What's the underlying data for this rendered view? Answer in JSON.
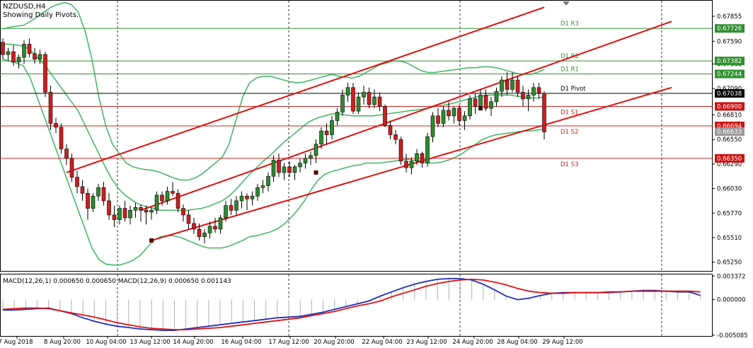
{
  "header": {
    "symbol": "NZDUSD,H4",
    "subtitle": "Showing Daily Pivots."
  },
  "colors": {
    "bull_candle": "#2e8b2e",
    "bear_candle": "#cc1f1f",
    "bollinger": "#4cb86a",
    "trendline": "#dd1111",
    "resistance": "#3c8c3c",
    "support": "#cc2222",
    "pivot": "#000000",
    "macd_line": "#1f2fb8",
    "signal_line": "#dd1111",
    "price_tag_green": "#2f8f2f",
    "price_tag_red": "#cc1111",
    "price_tag_black": "#000000",
    "price_tag_gray": "#9a9a9a"
  },
  "chart_data": [
    {
      "type": "candlestick",
      "title": "NZDUSD,H4",
      "subtitle": "Showing Daily Pivots.",
      "ylim": [
        0.6515,
        0.6802
      ],
      "y_ticks": [
        "0.67855",
        "0.67590",
        "0.67350",
        "0.67090",
        "0.66810",
        "0.66550",
        "0.66290",
        "0.66030",
        "0.65770",
        "0.65510",
        "0.65250"
      ],
      "x_ticks": [
        "7 Aug 2018",
        "8 Aug 20:00",
        "10 Aug 04:00",
        "13 Aug 12:00",
        "14 Aug 20:00",
        "16 Aug 04:00",
        "17 Aug 12:00",
        "20 Aug 20:00",
        "22 Aug 04:00",
        "23 Aug 12:00",
        "24 Aug 20:00",
        "28 Aug 04:00",
        "29 Aug 12:00"
      ],
      "candles": [
        [
          0.6758,
          0.6762,
          0.674,
          0.6745
        ],
        [
          0.6745,
          0.6752,
          0.6738,
          0.6748
        ],
        [
          0.6748,
          0.6755,
          0.6733,
          0.6737
        ],
        [
          0.6737,
          0.6745,
          0.673,
          0.6742
        ],
        [
          0.6742,
          0.676,
          0.6735,
          0.6756
        ],
        [
          0.6756,
          0.6762,
          0.6742,
          0.6746
        ],
        [
          0.6746,
          0.6752,
          0.6735,
          0.674
        ],
        [
          0.674,
          0.675,
          0.6735,
          0.6745
        ],
        [
          0.6745,
          0.6748,
          0.67,
          0.6705
        ],
        [
          0.6705,
          0.6712,
          0.6665,
          0.6672
        ],
        [
          0.6672,
          0.6678,
          0.6662,
          0.6668
        ],
        [
          0.6668,
          0.6672,
          0.664,
          0.6645
        ],
        [
          0.6645,
          0.665,
          0.6628,
          0.6635
        ],
        [
          0.6635,
          0.664,
          0.661,
          0.6615
        ],
        [
          0.6615,
          0.6622,
          0.6598,
          0.6605
        ],
        [
          0.6605,
          0.6612,
          0.659,
          0.6598
        ],
        [
          0.6598,
          0.6603,
          0.657,
          0.6582
        ],
        [
          0.6582,
          0.6598,
          0.6578,
          0.6595
        ],
        [
          0.6595,
          0.6608,
          0.659,
          0.6604
        ],
        [
          0.6604,
          0.661,
          0.6585,
          0.659
        ],
        [
          0.659,
          0.6598,
          0.657,
          0.6575
        ],
        [
          0.6575,
          0.6585,
          0.6562,
          0.657
        ],
        [
          0.657,
          0.6585,
          0.6565,
          0.6582
        ],
        [
          0.6582,
          0.659,
          0.6568,
          0.6572
        ],
        [
          0.6572,
          0.6585,
          0.6565,
          0.658
        ],
        [
          0.658,
          0.6588,
          0.6572,
          0.6583
        ],
        [
          0.6583,
          0.6586,
          0.6568,
          0.658
        ],
        [
          0.658,
          0.6585,
          0.6565,
          0.6578
        ],
        [
          0.6578,
          0.6583,
          0.657,
          0.658
        ],
        [
          0.658,
          0.66,
          0.6576,
          0.6596
        ],
        [
          0.6596,
          0.66,
          0.6585,
          0.659
        ],
        [
          0.659,
          0.6605,
          0.6586,
          0.66
        ],
        [
          0.66,
          0.661,
          0.6595,
          0.6598
        ],
        [
          0.6598,
          0.6602,
          0.6578,
          0.6582
        ],
        [
          0.6582,
          0.6586,
          0.6568,
          0.6575
        ],
        [
          0.6575,
          0.658,
          0.656,
          0.6566
        ],
        [
          0.6566,
          0.6572,
          0.6555,
          0.656
        ],
        [
          0.656,
          0.6566,
          0.6548,
          0.6552
        ],
        [
          0.6552,
          0.656,
          0.6545,
          0.6556
        ],
        [
          0.6556,
          0.6568,
          0.655,
          0.6563
        ],
        [
          0.6563,
          0.6572,
          0.6556,
          0.656
        ],
        [
          0.656,
          0.6575,
          0.6555,
          0.6572
        ],
        [
          0.6572,
          0.659,
          0.6568,
          0.6585
        ],
        [
          0.6585,
          0.6592,
          0.6575,
          0.658
        ],
        [
          0.658,
          0.6595,
          0.6575,
          0.659
        ],
        [
          0.659,
          0.66,
          0.6582,
          0.6595
        ],
        [
          0.6595,
          0.6598,
          0.658,
          0.6592
        ],
        [
          0.6592,
          0.66,
          0.6585,
          0.6595
        ],
        [
          0.6595,
          0.6608,
          0.659,
          0.6604
        ],
        [
          0.6604,
          0.6612,
          0.6598,
          0.6606
        ],
        [
          0.6606,
          0.662,
          0.66,
          0.6616
        ],
        [
          0.6616,
          0.6638,
          0.661,
          0.6633
        ],
        [
          0.6633,
          0.664,
          0.6615,
          0.662
        ],
        [
          0.662,
          0.663,
          0.6612,
          0.6626
        ],
        [
          0.6626,
          0.6632,
          0.6615,
          0.662
        ],
        [
          0.662,
          0.6628,
          0.6612,
          0.6626
        ],
        [
          0.6626,
          0.6635,
          0.662,
          0.663
        ],
        [
          0.663,
          0.664,
          0.6624,
          0.6635
        ],
        [
          0.6635,
          0.6642,
          0.6628,
          0.6638
        ],
        [
          0.6638,
          0.6655,
          0.663,
          0.665
        ],
        [
          0.665,
          0.6668,
          0.6645,
          0.6664
        ],
        [
          0.6664,
          0.6672,
          0.665,
          0.666
        ],
        [
          0.666,
          0.668,
          0.6655,
          0.6675
        ],
        [
          0.6675,
          0.6688,
          0.667,
          0.6684
        ],
        [
          0.6684,
          0.6708,
          0.668,
          0.6702
        ],
        [
          0.6702,
          0.6715,
          0.6695,
          0.671
        ],
        [
          0.671,
          0.6715,
          0.6682,
          0.6685
        ],
        [
          0.6685,
          0.6705,
          0.6682,
          0.67
        ],
        [
          0.67,
          0.6712,
          0.6692,
          0.6705
        ],
        [
          0.6705,
          0.671,
          0.6688,
          0.6692
        ],
        [
          0.6692,
          0.6708,
          0.6688,
          0.67
        ],
        [
          0.67,
          0.6705,
          0.6685,
          0.669
        ],
        [
          0.669,
          0.6692,
          0.6668,
          0.667
        ],
        [
          0.667,
          0.6675,
          0.6655,
          0.666
        ],
        [
          0.666,
          0.6665,
          0.665,
          0.6655
        ],
        [
          0.6655,
          0.6658,
          0.6628,
          0.6632
        ],
        [
          0.6632,
          0.664,
          0.662,
          0.6625
        ],
        [
          0.6625,
          0.6636,
          0.6618,
          0.6632
        ],
        [
          0.6632,
          0.6645,
          0.6628,
          0.664
        ],
        [
          0.664,
          0.6642,
          0.6625,
          0.663
        ],
        [
          0.663,
          0.6662,
          0.6626,
          0.6658
        ],
        [
          0.6658,
          0.6684,
          0.6652,
          0.668
        ],
        [
          0.668,
          0.6688,
          0.6668,
          0.6672
        ],
        [
          0.6672,
          0.669,
          0.6668,
          0.6686
        ],
        [
          0.6686,
          0.6695,
          0.6675,
          0.668
        ],
        [
          0.668,
          0.669,
          0.6672,
          0.6688
        ],
        [
          0.6688,
          0.6692,
          0.667,
          0.6675
        ],
        [
          0.6675,
          0.6685,
          0.6665,
          0.668
        ],
        [
          0.668,
          0.6702,
          0.6676,
          0.6698
        ],
        [
          0.6698,
          0.6704,
          0.6682,
          0.669
        ],
        [
          0.669,
          0.6708,
          0.6686,
          0.6702
        ],
        [
          0.6702,
          0.6708,
          0.6685,
          0.6688
        ],
        [
          0.6688,
          0.67,
          0.668,
          0.6695
        ],
        [
          0.6695,
          0.671,
          0.669,
          0.6706
        ],
        [
          0.6706,
          0.6722,
          0.67,
          0.6718
        ],
        [
          0.6718,
          0.6726,
          0.6702,
          0.6708
        ],
        [
          0.6708,
          0.6726,
          0.6705,
          0.6718
        ],
        [
          0.6718,
          0.6722,
          0.67,
          0.6705
        ],
        [
          0.6705,
          0.6712,
          0.669,
          0.6698
        ],
        [
          0.6698,
          0.6708,
          0.6685,
          0.6702
        ],
        [
          0.6702,
          0.6715,
          0.6695,
          0.671
        ],
        [
          0.671,
          0.6715,
          0.6698,
          0.6704
        ],
        [
          0.6704,
          0.6706,
          0.6655,
          0.6663
        ]
      ],
      "bollinger_bands": {
        "upper": [
          0.6772,
          0.6774,
          0.6775,
          0.6776,
          0.678,
          0.6785,
          0.679,
          0.6795,
          0.6798,
          0.68,
          0.6798,
          0.679,
          0.677,
          0.674,
          0.67,
          0.667,
          0.665,
          0.664,
          0.663,
          0.6626,
          0.6624,
          0.6623,
          0.6622,
          0.662,
          0.6617,
          0.6614,
          0.6612,
          0.6612,
          0.6614,
          0.6618,
          0.6624,
          0.663,
          0.6636,
          0.665,
          0.6675,
          0.67,
          0.6715,
          0.672,
          0.6722,
          0.6722,
          0.672,
          0.6718,
          0.6716,
          0.6715,
          0.6716,
          0.6718,
          0.672,
          0.6722,
          0.6724,
          0.6722,
          0.6721,
          0.672,
          0.6722,
          0.6726,
          0.673,
          0.6734,
          0.6736,
          0.6738,
          0.6738,
          0.6736,
          0.6732,
          0.6728,
          0.6726,
          0.6726,
          0.6727,
          0.6728,
          0.6729,
          0.673,
          0.6731,
          0.6731,
          0.6732,
          0.6732,
          0.6731,
          0.6729,
          0.6727,
          0.6725,
          0.6724,
          0.6724,
          0.6726,
          0.6729
        ],
        "lower": [
          0.674,
          0.6738,
          0.6736,
          0.6733,
          0.672,
          0.67,
          0.668,
          0.666,
          0.664,
          0.662,
          0.66,
          0.658,
          0.656,
          0.654,
          0.6528,
          0.6523,
          0.6522,
          0.6522,
          0.6524,
          0.6527,
          0.6532,
          0.654,
          0.6548,
          0.6552,
          0.6553,
          0.6553,
          0.6551,
          0.6548,
          0.6545,
          0.6542,
          0.654,
          0.654,
          0.654,
          0.6542,
          0.6545,
          0.6548,
          0.6552,
          0.6553,
          0.6555,
          0.6557,
          0.656,
          0.6565,
          0.6572,
          0.658,
          0.659,
          0.6602,
          0.6612,
          0.6618,
          0.6621,
          0.6623,
          0.6625,
          0.6627,
          0.6628,
          0.663,
          0.663,
          0.663,
          0.6631,
          0.6632,
          0.6633,
          0.6634,
          0.6633,
          0.6632,
          0.663,
          0.663,
          0.6631,
          0.6633,
          0.6636,
          0.664,
          0.6645,
          0.665,
          0.6655,
          0.6658,
          0.666,
          0.6661,
          0.6662,
          0.6663,
          0.6664,
          0.6664,
          0.6665,
          0.6666
        ],
        "middle": [
          0.6756,
          0.6756,
          0.6755,
          0.6754,
          0.675,
          0.6742,
          0.6735,
          0.6725,
          0.6715,
          0.6705,
          0.6695,
          0.6685,
          0.667,
          0.6655,
          0.664,
          0.6625,
          0.6612,
          0.6602,
          0.6595,
          0.659,
          0.6586,
          0.6584,
          0.6582,
          0.658,
          0.658,
          0.658,
          0.658,
          0.658,
          0.6581,
          0.6582,
          0.6584,
          0.6587,
          0.659,
          0.6595,
          0.6602,
          0.661,
          0.6618,
          0.6625,
          0.6632,
          0.6638,
          0.6645,
          0.6652,
          0.6658,
          0.6664,
          0.667,
          0.6675,
          0.6678,
          0.668,
          0.6682,
          0.6682,
          0.6681,
          0.668,
          0.668,
          0.668,
          0.668,
          0.6681,
          0.6682,
          0.6683,
          0.6684,
          0.6685,
          0.6686,
          0.6687,
          0.6688,
          0.669,
          0.6691,
          0.6692,
          0.6694,
          0.6696,
          0.6698,
          0.67,
          0.6701,
          0.6702,
          0.6702,
          0.6702,
          0.6702,
          0.6701,
          0.67,
          0.6699,
          0.6699,
          0.67
        ]
      },
      "trendlines": [
        {
          "from": [
            12,
            0.662
          ],
          "to": [
            102,
            0.6795
          ]
        },
        {
          "from": [
            26,
            0.658
          ],
          "to": [
            126,
            0.678
          ]
        },
        {
          "from": [
            28,
            0.6548
          ],
          "to": [
            126,
            0.671
          ]
        }
      ],
      "trendline_markers": [
        {
          "bar": 28,
          "price": 0.6548
        },
        {
          "bar": 59,
          "price": 0.662
        },
        {
          "bar": 90,
          "price": 0.6688
        }
      ],
      "pivot_levels": [
        {
          "name": "D1 R3",
          "price": 0.67726,
          "kind": "resistance",
          "tag": "0.67726"
        },
        {
          "name": "D1 R2",
          "price": 0.67382,
          "kind": "resistance",
          "tag": "0.67382"
        },
        {
          "name": "D1 R1",
          "price": 0.67244,
          "kind": "resistance",
          "tag": "0.67244"
        },
        {
          "name": "D1 Pivot",
          "price": 0.67038,
          "kind": "pivot",
          "tag": "0.67038"
        },
        {
          "name": "D1 S1",
          "price": 0.669,
          "kind": "support",
          "tag": "0.66900"
        },
        {
          "name": "D1 S2",
          "price": 0.66694,
          "kind": "support",
          "tag": "0.66694"
        },
        {
          "name": "D1 S3",
          "price": 0.6635,
          "kind": "support",
          "tag": "0.66350"
        }
      ],
      "bid_tag": "0.66633",
      "bid_price": 0.66633
    },
    {
      "type": "line",
      "title": "MACD(12,26,1) 0.000650 0.000650 MACD(12,26,9) 0.000650 0.001143",
      "ylim": [
        -0.0052,
        0.0036
      ],
      "y_ticks": [
        "0.003372",
        "0.000000",
        "-0.005085"
      ],
      "series": [
        {
          "name": "MACD",
          "values": [
            -0.0015,
            -0.0015,
            -0.0014,
            -0.0013,
            -0.0012,
            -0.0016,
            -0.002,
            -0.0026,
            -0.0031,
            -0.0035,
            -0.0038,
            -0.004,
            -0.0042,
            -0.0043,
            -0.0044,
            -0.0044,
            -0.0042,
            -0.004,
            -0.0038,
            -0.0036,
            -0.0034,
            -0.0032,
            -0.003,
            -0.0028,
            -0.0026,
            -0.0025,
            -0.0024,
            -0.0021,
            -0.0018,
            -0.0014,
            -0.001,
            -0.0006,
            -0.0002,
            0.0005,
            0.0011,
            0.0017,
            0.0022,
            0.0026,
            0.0029,
            0.003,
            0.003,
            0.0028,
            0.0022,
            0.0014,
            0.0005,
            0.0,
            0.0002,
            0.0006,
            0.0009,
            0.001,
            0.001,
            0.001,
            0.001,
            0.001,
            0.0011,
            0.0012,
            0.0013,
            0.0013,
            0.0012,
            0.0011,
            0.0011,
            0.0006
          ]
        },
        {
          "name": "Signal",
          "values": [
            -0.0014,
            -0.0013,
            -0.0012,
            -0.0012,
            -0.0013,
            -0.0016,
            -0.0019,
            -0.0022,
            -0.0025,
            -0.0029,
            -0.0033,
            -0.0036,
            -0.0039,
            -0.0041,
            -0.0042,
            -0.0043,
            -0.0043,
            -0.0042,
            -0.0041,
            -0.004,
            -0.0038,
            -0.0036,
            -0.0034,
            -0.0032,
            -0.003,
            -0.0028,
            -0.0026,
            -0.0023,
            -0.002,
            -0.0017,
            -0.0013,
            -0.0009,
            -0.0006,
            -0.0002,
            0.0004,
            0.0009,
            0.0014,
            0.0019,
            0.0023,
            0.0026,
            0.0028,
            0.0029,
            0.0028,
            0.0025,
            0.0021,
            0.0016,
            0.0012,
            0.001,
            0.0009,
            0.0009,
            0.001,
            0.001,
            0.001,
            0.0011,
            0.0011,
            0.0012,
            0.0012,
            0.0012,
            0.0012,
            0.0012,
            0.0012,
            0.0011
          ]
        }
      ]
    }
  ]
}
